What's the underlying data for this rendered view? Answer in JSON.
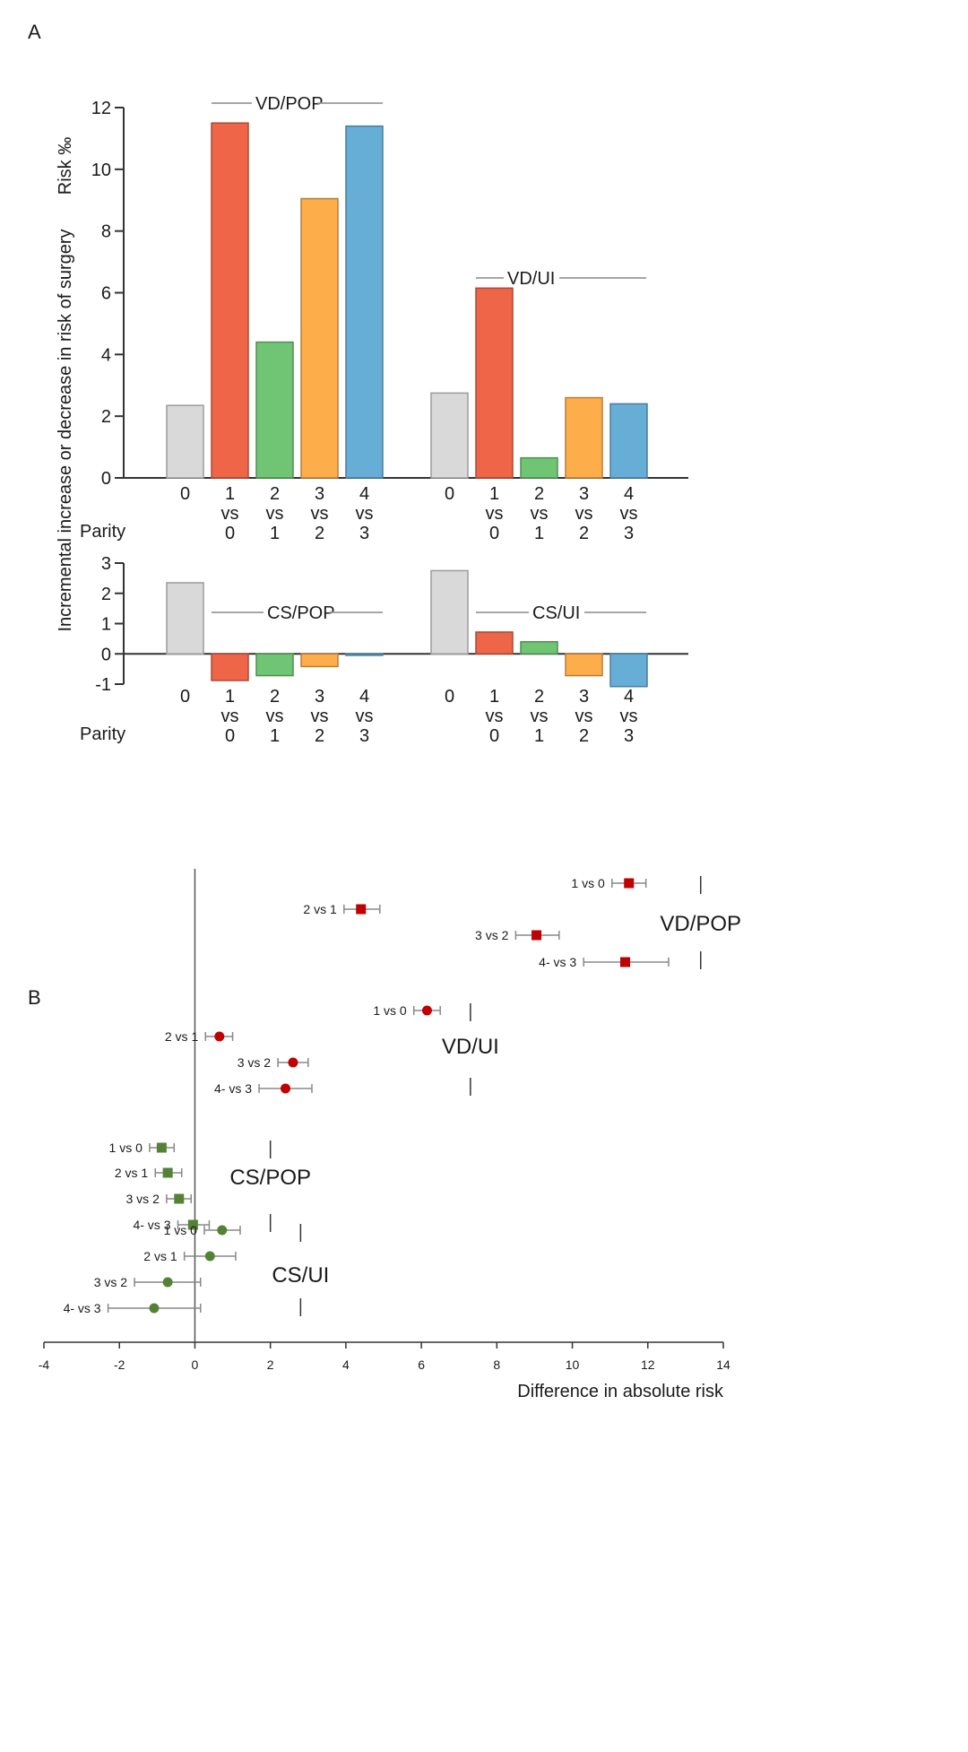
{
  "panels": {
    "a_label": "A",
    "b_label": "B"
  },
  "chart_data": [
    {
      "id": "A_top",
      "type": "bar",
      "title": "",
      "ylabel": "Risk ‰",
      "shared_ylabel": "Incremental increase or decrease in risk of surgery",
      "xlabel": "Parity",
      "ylim": [
        0,
        12
      ],
      "yticks": [
        0,
        2,
        4,
        6,
        8,
        10,
        12
      ],
      "categories": [
        "0",
        "1 vs 0",
        "2 vs 1",
        "3 vs 2",
        "4 vs 3"
      ],
      "category_lines": [
        [
          "0"
        ],
        [
          "1",
          "vs",
          "0"
        ],
        [
          "2",
          "vs",
          "1"
        ],
        [
          "3",
          "vs",
          "2"
        ],
        [
          "4",
          "vs",
          "3"
        ]
      ],
      "colors": [
        "#d9d9d9",
        "#ee6548",
        "#70c574",
        "#fdae4b",
        "#67aed7"
      ],
      "series": [
        {
          "name": "VD/POP",
          "values": [
            2.35,
            11.5,
            4.4,
            9.05,
            11.4
          ]
        },
        {
          "name": "VD/UI",
          "values": [
            2.75,
            6.15,
            0.65,
            2.6,
            2.4
          ]
        }
      ]
    },
    {
      "id": "A_bottom",
      "type": "bar",
      "xlabel": "Parity",
      "ylim": [
        -1,
        3
      ],
      "yticks": [
        -1,
        0,
        1,
        2,
        3
      ],
      "categories": [
        "0",
        "1 vs 0",
        "2 vs 1",
        "3 vs 2",
        "4 vs 3"
      ],
      "category_lines": [
        [
          "0"
        ],
        [
          "1",
          "vs",
          "0"
        ],
        [
          "2",
          "vs",
          "1"
        ],
        [
          "3",
          "vs",
          "2"
        ],
        [
          "4",
          "vs",
          "3"
        ]
      ],
      "colors": [
        "#d9d9d9",
        "#ee6548",
        "#70c574",
        "#fdae4b",
        "#67aed7"
      ],
      "series": [
        {
          "name": "CS/POP",
          "values": [
            2.35,
            -0.88,
            -0.72,
            -0.42,
            -0.05
          ]
        },
        {
          "name": "CS/UI",
          "values": [
            2.75,
            0.72,
            0.4,
            -0.72,
            -1.08
          ]
        }
      ]
    },
    {
      "id": "B",
      "type": "scatter",
      "subtype": "forest",
      "xlabel": "Difference in absolute risk",
      "xlim": [
        -4,
        14
      ],
      "xticks": [
        -4,
        -2,
        0,
        2,
        4,
        6,
        8,
        10,
        12,
        14
      ],
      "groups": [
        {
          "name": "VD/POP",
          "marker": "square",
          "color": "#c00000",
          "points": [
            {
              "label": "1 vs 0",
              "est": 11.5,
              "lo": 11.05,
              "hi": 11.95
            },
            {
              "label": "2 vs 1",
              "est": 4.4,
              "lo": 3.95,
              "hi": 4.9
            },
            {
              "label": "3 vs 2",
              "est": 9.05,
              "lo": 8.5,
              "hi": 9.65
            },
            {
              "label": "4- vs 3",
              "est": 11.4,
              "lo": 10.3,
              "hi": 12.55
            }
          ]
        },
        {
          "name": "VD/UI",
          "marker": "circle",
          "color": "#c00000",
          "points": [
            {
              "label": "1 vs 0",
              "est": 6.15,
              "lo": 5.8,
              "hi": 6.5
            },
            {
              "label": "2 vs 1",
              "est": 0.65,
              "lo": 0.28,
              "hi": 1.0
            },
            {
              "label": "3 vs 2",
              "est": 2.6,
              "lo": 2.2,
              "hi": 3.0
            },
            {
              "label": "4- vs 3",
              "est": 2.4,
              "lo": 1.7,
              "hi": 3.1
            }
          ]
        },
        {
          "name": "CS/POP",
          "marker": "square",
          "color": "#548235",
          "points": [
            {
              "label": "1 vs 0",
              "est": -0.88,
              "lo": -1.2,
              "hi": -0.55
            },
            {
              "label": "2 vs 1",
              "est": -0.72,
              "lo": -1.05,
              "hi": -0.35
            },
            {
              "label": "3 vs 2",
              "est": -0.42,
              "lo": -0.75,
              "hi": -0.1
            },
            {
              "label": "4- vs 3",
              "est": -0.05,
              "lo": -0.45,
              "hi": 0.38
            }
          ]
        },
        {
          "name": "CS/UI",
          "marker": "circle",
          "color": "#548235",
          "points": [
            {
              "label": "1 vs 0",
              "est": 0.72,
              "lo": 0.25,
              "hi": 1.2
            },
            {
              "label": "2 vs 1",
              "est": 0.4,
              "lo": -0.28,
              "hi": 1.08
            },
            {
              "label": "3 vs 2",
              "est": -0.72,
              "lo": -1.6,
              "hi": 0.15
            },
            {
              "label": "4- vs 3",
              "est": -1.08,
              "lo": -2.3,
              "hi": 0.15
            }
          ]
        }
      ]
    }
  ]
}
